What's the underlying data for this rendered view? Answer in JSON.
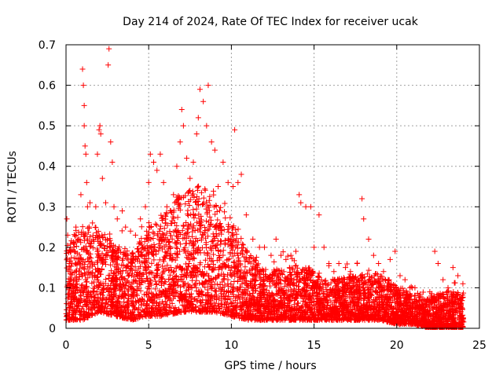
{
  "chart_data": {
    "type": "scatter",
    "title": "Day 214 of 2024, Rate Of TEC Index for receiver ucak",
    "xlabel": "GPS time / hours",
    "ylabel": "ROTI / TECUs",
    "xlim": [
      0,
      25
    ],
    "ylim": [
      0,
      0.7
    ],
    "x_ticks": [
      0,
      5,
      10,
      15,
      20,
      25
    ],
    "y_ticks": [
      0,
      0.1,
      0.2,
      0.3,
      0.4,
      0.5,
      0.6,
      0.7
    ],
    "x_tick_labels": [
      "0",
      "5",
      "10",
      "15",
      "20",
      "25"
    ],
    "y_tick_labels": [
      "0",
      "0.1",
      "0.2",
      "0.3",
      "0.4",
      "0.5",
      "0.6",
      "0.7"
    ],
    "grid": true,
    "marker": "plus",
    "color": "#ff0000",
    "series": [
      {
        "name": "ROTI",
        "points": [
          [
            0.05,
            0.27
          ],
          [
            0.1,
            0.23
          ],
          [
            0.2,
            0.16
          ],
          [
            0.3,
            0.19
          ],
          [
            0.45,
            0.21
          ],
          [
            0.6,
            0.25
          ],
          [
            0.75,
            0.22
          ],
          [
            0.9,
            0.33
          ],
          [
            1.0,
            0.64
          ],
          [
            1.05,
            0.6
          ],
          [
            1.1,
            0.55
          ],
          [
            1.1,
            0.5
          ],
          [
            1.15,
            0.45
          ],
          [
            1.2,
            0.43
          ],
          [
            1.25,
            0.36
          ],
          [
            1.3,
            0.3
          ],
          [
            1.45,
            0.31
          ],
          [
            1.6,
            0.26
          ],
          [
            1.8,
            0.3
          ],
          [
            1.9,
            0.43
          ],
          [
            2.0,
            0.49
          ],
          [
            2.05,
            0.5
          ],
          [
            2.1,
            0.48
          ],
          [
            2.2,
            0.37
          ],
          [
            2.4,
            0.31
          ],
          [
            2.55,
            0.65
          ],
          [
            2.6,
            0.69
          ],
          [
            2.7,
            0.46
          ],
          [
            2.8,
            0.41
          ],
          [
            2.9,
            0.3
          ],
          [
            3.1,
            0.27
          ],
          [
            3.4,
            0.29
          ],
          [
            3.6,
            0.25
          ],
          [
            3.9,
            0.24
          ],
          [
            4.2,
            0.23
          ],
          [
            4.5,
            0.27
          ],
          [
            4.8,
            0.3
          ],
          [
            5.0,
            0.36
          ],
          [
            5.1,
            0.43
          ],
          [
            5.3,
            0.41
          ],
          [
            5.5,
            0.39
          ],
          [
            5.7,
            0.43
          ],
          [
            5.9,
            0.36
          ],
          [
            6.1,
            0.3
          ],
          [
            6.3,
            0.29
          ],
          [
            6.5,
            0.33
          ],
          [
            6.7,
            0.4
          ],
          [
            6.9,
            0.46
          ],
          [
            7.0,
            0.54
          ],
          [
            7.1,
            0.5
          ],
          [
            7.3,
            0.42
          ],
          [
            7.5,
            0.37
          ],
          [
            7.7,
            0.41
          ],
          [
            7.9,
            0.48
          ],
          [
            8.0,
            0.52
          ],
          [
            8.1,
            0.59
          ],
          [
            8.3,
            0.56
          ],
          [
            8.5,
            0.5
          ],
          [
            8.6,
            0.6
          ],
          [
            8.8,
            0.46
          ],
          [
            9.0,
            0.44
          ],
          [
            9.2,
            0.35
          ],
          [
            9.5,
            0.41
          ],
          [
            9.8,
            0.36
          ],
          [
            10.1,
            0.35
          ],
          [
            10.2,
            0.49
          ],
          [
            10.4,
            0.36
          ],
          [
            10.6,
            0.38
          ],
          [
            10.9,
            0.28
          ],
          [
            11.3,
            0.22
          ],
          [
            11.7,
            0.2
          ],
          [
            12.0,
            0.2
          ],
          [
            12.4,
            0.18
          ],
          [
            12.7,
            0.22
          ],
          [
            13.0,
            0.18
          ],
          [
            13.3,
            0.17
          ],
          [
            13.6,
            0.18
          ],
          [
            13.9,
            0.19
          ],
          [
            14.1,
            0.33
          ],
          [
            14.2,
            0.31
          ],
          [
            14.5,
            0.3
          ],
          [
            14.8,
            0.3
          ],
          [
            15.0,
            0.2
          ],
          [
            15.3,
            0.28
          ],
          [
            15.6,
            0.2
          ],
          [
            15.9,
            0.16
          ],
          [
            16.2,
            0.14
          ],
          [
            16.5,
            0.16
          ],
          [
            16.9,
            0.15
          ],
          [
            17.2,
            0.14
          ],
          [
            17.6,
            0.16
          ],
          [
            17.9,
            0.32
          ],
          [
            18.0,
            0.27
          ],
          [
            18.3,
            0.22
          ],
          [
            18.6,
            0.18
          ],
          [
            18.9,
            0.16
          ],
          [
            19.2,
            0.14
          ],
          [
            19.6,
            0.17
          ],
          [
            19.9,
            0.19
          ],
          [
            20.2,
            0.13
          ],
          [
            20.5,
            0.12
          ],
          [
            20.8,
            0.1
          ],
          [
            21.1,
            0.1
          ],
          [
            21.4,
            0.08
          ],
          [
            21.7,
            0.07
          ],
          [
            22.0,
            0.09
          ],
          [
            22.3,
            0.19
          ],
          [
            22.5,
            0.16
          ],
          [
            22.8,
            0.12
          ],
          [
            23.1,
            0.1
          ],
          [
            23.4,
            0.15
          ],
          [
            23.7,
            0.13
          ],
          [
            24.0,
            0.11
          ]
        ]
      }
    ],
    "envelope": {
      "description": "dense scatter band per hour: [hour, typical_low, typical_high]",
      "band": [
        [
          0,
          0.02,
          0.2
        ],
        [
          1,
          0.02,
          0.24
        ],
        [
          2,
          0.04,
          0.24
        ],
        [
          3,
          0.03,
          0.2
        ],
        [
          4,
          0.02,
          0.18
        ],
        [
          5,
          0.03,
          0.25
        ],
        [
          6,
          0.03,
          0.27
        ],
        [
          7,
          0.04,
          0.33
        ],
        [
          8,
          0.04,
          0.35
        ],
        [
          9,
          0.04,
          0.3
        ],
        [
          10,
          0.03,
          0.26
        ],
        [
          11,
          0.02,
          0.18
        ],
        [
          12,
          0.02,
          0.14
        ],
        [
          13,
          0.02,
          0.14
        ],
        [
          14,
          0.02,
          0.15
        ],
        [
          15,
          0.02,
          0.14
        ],
        [
          16,
          0.02,
          0.12
        ],
        [
          17,
          0.02,
          0.12
        ],
        [
          18,
          0.02,
          0.13
        ],
        [
          19,
          0.02,
          0.13
        ],
        [
          20,
          0.01,
          0.1
        ],
        [
          21,
          0.01,
          0.08
        ],
        [
          22,
          0.0,
          0.07
        ],
        [
          23,
          0.0,
          0.09
        ],
        [
          24,
          0.0,
          0.08
        ]
      ]
    }
  }
}
